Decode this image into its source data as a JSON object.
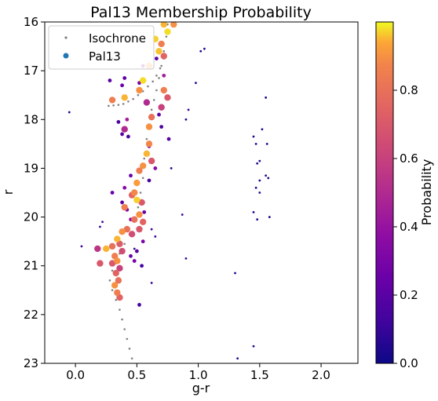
{
  "chart_data": {
    "type": "scatter",
    "title": "Pal13 Membership Probability",
    "xlabel": "g-r",
    "ylabel": "r",
    "xlim": [
      -0.25,
      2.3
    ],
    "ylim": [
      23,
      16
    ],
    "y_inverted": true,
    "grid": false,
    "legend_placement": "top-left",
    "x_ticks": [
      0.0,
      0.5,
      1.0,
      1.5,
      2.0
    ],
    "x_tick_labels": [
      "0.0",
      "0.5",
      "1.0",
      "1.5",
      "2.0"
    ],
    "y_ticks": [
      16,
      17,
      18,
      19,
      20,
      21,
      22,
      23
    ],
    "y_tick_labels": [
      "16",
      "17",
      "18",
      "19",
      "20",
      "21",
      "22",
      "23"
    ],
    "colorbar": {
      "label": "Probability",
      "colormap": "plasma",
      "range": [
        0.0,
        1.0
      ],
      "ticks": [
        0.0,
        0.2,
        0.4,
        0.6,
        0.8
      ],
      "tick_labels": [
        "0.0",
        "0.2",
        "0.4",
        "0.6",
        "0.8"
      ]
    },
    "series": [
      {
        "name": "Isochrone",
        "marker": "small-dot",
        "color": "#808080",
        "points": [
          [
            0.75,
            16.05
          ],
          [
            0.74,
            16.3
          ],
          [
            0.72,
            16.6
          ],
          [
            0.7,
            16.9
          ],
          [
            0.68,
            17.15
          ],
          [
            0.66,
            17.4
          ],
          [
            0.64,
            17.6
          ],
          [
            0.62,
            17.8
          ],
          [
            0.6,
            18.1
          ],
          [
            0.58,
            18.4
          ],
          [
            0.56,
            18.8
          ],
          [
            0.55,
            19.2
          ],
          [
            0.53,
            19.5
          ],
          [
            0.51,
            19.8
          ],
          [
            0.48,
            20.1
          ],
          [
            0.44,
            20.35
          ],
          [
            0.4,
            20.55
          ],
          [
            0.36,
            20.75
          ],
          [
            0.33,
            20.95
          ],
          [
            0.3,
            21.1
          ],
          [
            0.28,
            21.3
          ],
          [
            0.3,
            21.5
          ],
          [
            0.33,
            21.7
          ],
          [
            0.36,
            21.9
          ],
          [
            0.38,
            22.1
          ],
          [
            0.4,
            22.3
          ],
          [
            0.42,
            22.5
          ],
          [
            0.44,
            22.7
          ],
          [
            0.46,
            22.9
          ],
          [
            0.27,
            17.72
          ],
          [
            0.31,
            17.71
          ],
          [
            0.35,
            17.7
          ],
          [
            0.39,
            17.68
          ],
          [
            0.43,
            17.63
          ],
          [
            0.47,
            17.58
          ],
          [
            0.51,
            17.5
          ],
          [
            0.55,
            17.42
          ],
          [
            0.59,
            17.32
          ],
          [
            0.63,
            17.22
          ],
          [
            0.66,
            17.1
          ],
          [
            0.69,
            16.95
          ],
          [
            0.72,
            16.75
          ]
        ]
      },
      {
        "name": "Pal13",
        "marker": "filled-circle",
        "color_by": "probability",
        "points": [
          [
            0.72,
            16.05,
            0.95
          ],
          [
            0.8,
            16.05,
            0.9
          ],
          [
            0.75,
            16.2,
            0.98
          ],
          [
            0.65,
            16.35,
            0.97
          ],
          [
            0.7,
            16.45,
            0.85
          ],
          [
            0.68,
            16.6,
            0.96
          ],
          [
            0.72,
            16.7,
            0.75
          ],
          [
            0.6,
            16.9,
            0.93
          ],
          [
            0.55,
            17.2,
            0.98
          ],
          [
            0.52,
            17.4,
            0.9
          ],
          [
            0.72,
            17.4,
            0.85
          ],
          [
            0.75,
            17.55,
            0.7
          ],
          [
            0.7,
            17.75,
            0.6
          ],
          [
            0.3,
            17.6,
            0.85
          ],
          [
            0.4,
            17.55,
            0.95
          ],
          [
            0.62,
            17.95,
            0.8
          ],
          [
            0.6,
            18.15,
            0.9
          ],
          [
            0.6,
            18.5,
            0.88
          ],
          [
            0.58,
            18.7,
            0.95
          ],
          [
            0.55,
            18.95,
            0.9
          ],
          [
            0.62,
            18.85,
            0.7
          ],
          [
            0.52,
            19.05,
            0.85
          ],
          [
            0.5,
            19.3,
            0.92
          ],
          [
            0.48,
            19.5,
            0.88
          ],
          [
            0.46,
            19.55,
            0.75
          ],
          [
            0.5,
            19.65,
            0.97
          ],
          [
            0.54,
            19.7,
            0.7
          ],
          [
            0.52,
            19.95,
            0.9
          ],
          [
            0.48,
            20.05,
            0.8
          ],
          [
            0.55,
            20.1,
            0.75
          ],
          [
            0.52,
            20.25,
            0.7
          ],
          [
            0.42,
            20.25,
            0.8
          ],
          [
            0.38,
            20.3,
            0.9
          ],
          [
            0.46,
            20.35,
            0.65
          ],
          [
            0.34,
            20.45,
            0.95
          ],
          [
            0.36,
            20.55,
            0.72
          ],
          [
            0.3,
            20.6,
            0.8
          ],
          [
            0.38,
            20.7,
            0.65
          ],
          [
            0.32,
            20.8,
            0.85
          ],
          [
            0.34,
            20.9,
            0.9
          ],
          [
            0.3,
            20.95,
            0.7
          ],
          [
            0.36,
            21.05,
            0.6
          ],
          [
            0.33,
            21.15,
            0.75
          ],
          [
            0.35,
            21.3,
            0.8
          ],
          [
            0.32,
            21.4,
            0.9
          ],
          [
            0.34,
            21.55,
            0.85
          ],
          [
            0.36,
            21.65,
            0.75
          ],
          [
            0.18,
            20.65,
            0.55
          ],
          [
            0.2,
            20.95,
            0.7
          ],
          [
            0.25,
            20.65,
            0.95
          ],
          [
            0.4,
            19.8,
            0.85
          ],
          [
            0.72,
            17.1,
            0.45
          ],
          [
            0.55,
            16.9,
            0.4
          ],
          [
            0.58,
            17.65,
            0.5
          ],
          [
            0.52,
            17.25,
            0.3
          ],
          [
            0.38,
            17.3,
            0.25
          ],
          [
            0.42,
            18.0,
            0.45
          ],
          [
            0.4,
            18.2,
            0.5
          ],
          [
            0.76,
            18.4,
            0.2
          ],
          [
            0.65,
            19.0,
            0.35
          ],
          [
            0.45,
            19.15,
            0.25
          ],
          [
            0.6,
            18.55,
            0.3
          ],
          [
            0.42,
            19.85,
            0.3
          ],
          [
            0.45,
            20.8,
            0.25
          ],
          [
            0.48,
            20.9,
            0.3
          ],
          [
            0.5,
            20.7,
            0.2
          ],
          [
            0.54,
            21.0,
            0.15
          ],
          [
            0.55,
            20.5,
            0.3
          ],
          [
            0.56,
            19.9,
            0.25
          ],
          [
            0.4,
            19.4,
            0.35
          ],
          [
            0.3,
            19.5,
            0.25
          ],
          [
            0.45,
            20.05,
            0.4
          ],
          [
            0.3,
            16.75,
            0.1
          ],
          [
            0.28,
            17.2,
            0.2
          ],
          [
            0.4,
            17.15,
            0.2
          ],
          [
            0.35,
            18.05,
            0.15
          ],
          [
            0.38,
            18.3,
            0.2
          ],
          [
            0.43,
            18.35,
            0.15
          ],
          [
            0.38,
            19.7,
            0.2
          ],
          [
            0.2,
            20.2,
            0.1
          ],
          [
            0.48,
            20.65,
            0.1
          ],
          [
            0.52,
            21.8,
            0.15
          ],
          [
            0.62,
            21.35,
            0.1
          ],
          [
            0.65,
            20.4,
            0.1
          ],
          [
            0.6,
            19.25,
            0.15
          ],
          [
            0.68,
            17.9,
            0.2
          ],
          [
            0.7,
            18.15,
            0.15
          ],
          [
            0.66,
            16.75,
            0.2
          ],
          [
            0.62,
            20.25,
            0.1
          ],
          [
            0.22,
            20.1,
            0.1
          ],
          [
            0.05,
            20.6,
            0.1
          ],
          [
            0.78,
            19.0,
            0.05
          ],
          [
            0.87,
            19.95,
            0.1
          ],
          [
            0.9,
            20.85,
            0.1
          ],
          [
            0.92,
            17.8,
            0.1
          ],
          [
            0.98,
            17.25,
            0.05
          ],
          [
            1.02,
            16.6,
            0.05
          ],
          [
            1.05,
            16.55,
            0.05
          ],
          [
            0.9,
            18.0,
            0.05
          ],
          [
            -0.05,
            17.85,
            0.05
          ],
          [
            1.45,
            18.35,
            0.05
          ],
          [
            1.47,
            18.5,
            0.05
          ],
          [
            1.52,
            18.2,
            0.05
          ],
          [
            1.56,
            18.5,
            0.05
          ],
          [
            1.48,
            18.9,
            0.05
          ],
          [
            1.5,
            18.85,
            0.05
          ],
          [
            1.55,
            19.15,
            0.05
          ],
          [
            1.57,
            19.2,
            0.05
          ],
          [
            1.5,
            19.25,
            0.05
          ],
          [
            1.47,
            19.4,
            0.05
          ],
          [
            1.5,
            19.5,
            0.05
          ],
          [
            1.45,
            19.9,
            0.05
          ],
          [
            1.48,
            20.05,
            0.05
          ],
          [
            1.58,
            20.0,
            0.05
          ],
          [
            1.55,
            17.55,
            0.05
          ],
          [
            1.3,
            21.15,
            0.05
          ],
          [
            1.45,
            22.65,
            0.05
          ],
          [
            1.32,
            22.9,
            0.05
          ]
        ]
      }
    ]
  }
}
